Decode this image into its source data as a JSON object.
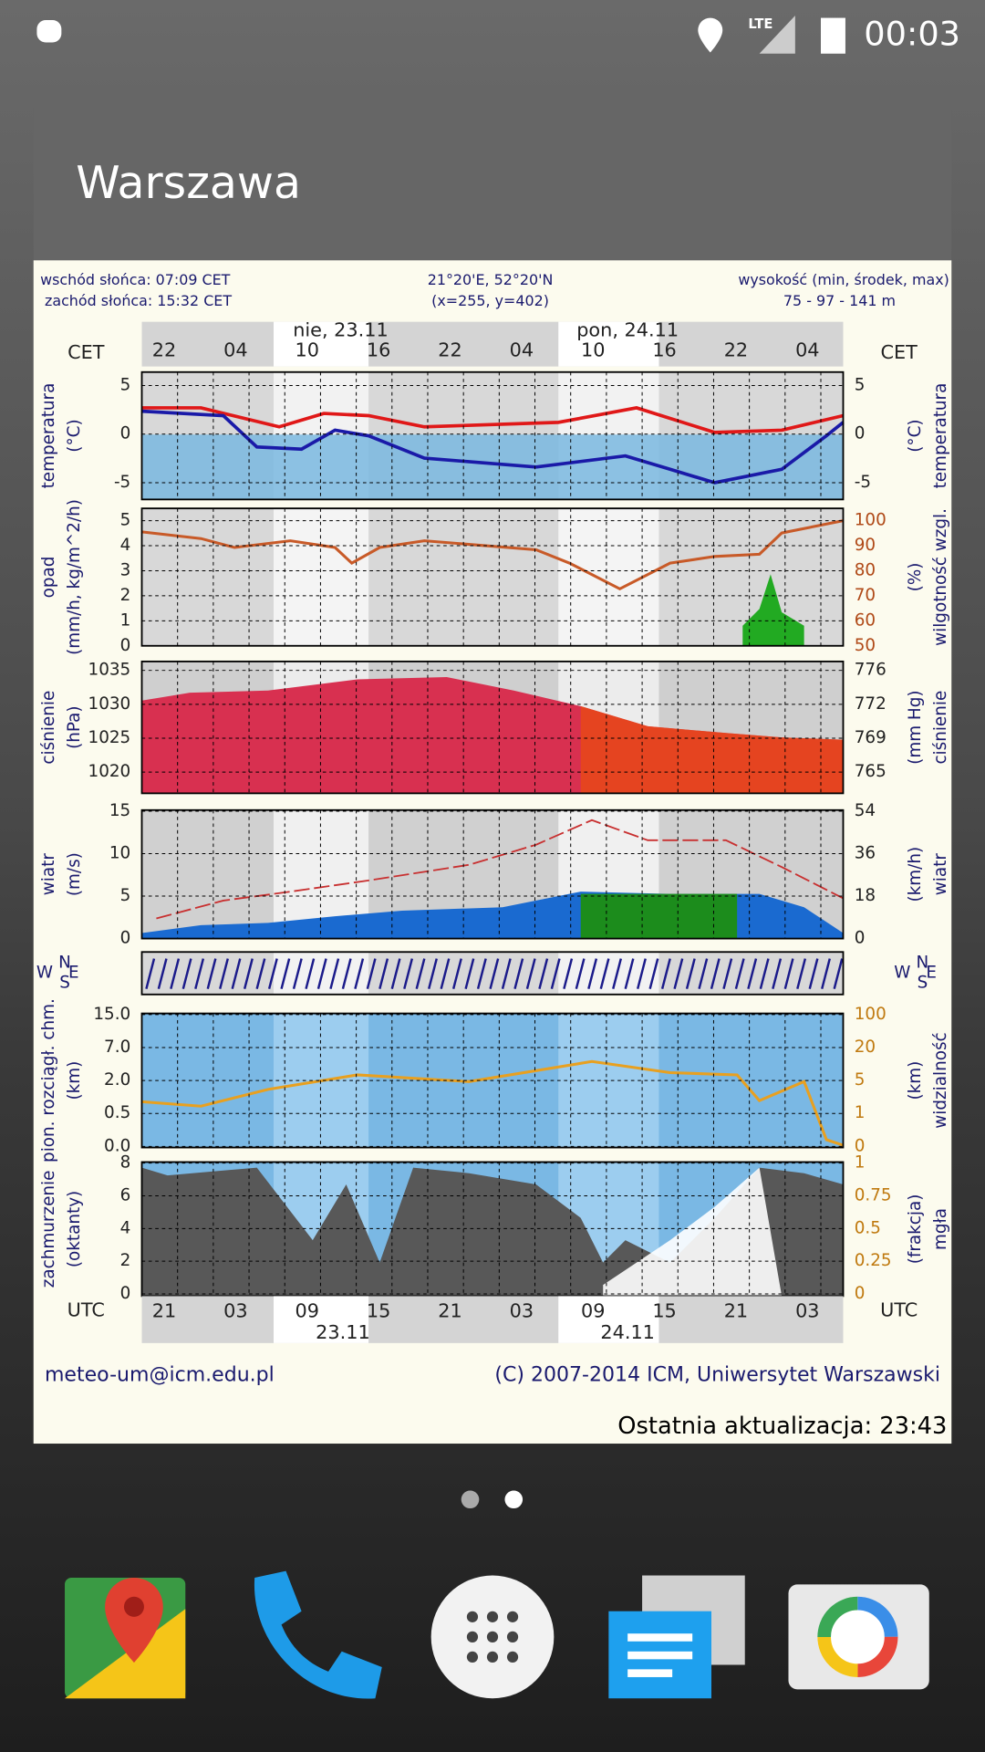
{
  "status_bar": {
    "network": "LTE",
    "time": "00:03"
  },
  "widget": {
    "title": "Warszawa",
    "updated": "Ostatnia aktualizacja: 23:43"
  },
  "meteogram": {
    "header": {
      "left": [
        "wschód słońca: 07:09 CET",
        "zachód słońca: 15:32 CET"
      ],
      "center": [
        "21°20'E, 52°20'N",
        "(x=255, y=402)"
      ],
      "right": [
        "wysokość (min, środek, max)",
        "75 - 97 - 141 m"
      ]
    },
    "top_axis": {
      "zone": "CET",
      "hours": [
        "22",
        "04",
        "10",
        "16",
        "22",
        "04",
        "10",
        "16",
        "22",
        "04"
      ],
      "days": [
        "nie, 23.11",
        "pon, 24.11"
      ]
    },
    "panels": [
      {
        "left_label": [
          "temperatura",
          "(°C)"
        ],
        "right_label": [
          "temperatura",
          "(°C)"
        ],
        "left_ticks": [
          "5",
          "0",
          "-5"
        ],
        "right_ticks": [
          "5",
          "0",
          "-5"
        ]
      },
      {
        "left_label": [
          "opad",
          "(mm/h, kg/m^2/h)"
        ],
        "right_label": [
          "wilgotność wzgl.",
          "(%)"
        ],
        "left_ticks": [
          "5",
          "4",
          "3",
          "2",
          "1",
          "0"
        ],
        "right_ticks": [
          "100",
          "90",
          "80",
          "70",
          "60",
          "50"
        ]
      },
      {
        "left_label": [
          "ciśnienie",
          "(hPa)"
        ],
        "right_label": [
          "ciśnienie",
          "(mm Hg)"
        ],
        "left_ticks": [
          "1035",
          "1030",
          "1025",
          "1020"
        ],
        "right_ticks": [
          "776",
          "772",
          "769",
          "765"
        ]
      },
      {
        "left_label": [
          "wiatr",
          "(m/s)"
        ],
        "right_label": [
          "wiatr",
          "(km/h)"
        ],
        "left_ticks": [
          "15",
          "10",
          "5",
          "0"
        ],
        "right_ticks": [
          "54",
          "36",
          "18",
          "0"
        ]
      },
      {
        "left_label": [
          "pion. rozciągł. chm.",
          "(km)"
        ],
        "right_label": [
          "widzialność",
          "(km)"
        ],
        "left_ticks": [
          "15.0",
          "7.0",
          "2.0",
          "0.5",
          "0.0"
        ],
        "right_ticks": [
          "100",
          "20",
          "5",
          "1",
          "0"
        ]
      },
      {
        "left_label": [
          "zachmurzenie",
          "(oktanty)"
        ],
        "right_label": [
          "mgła",
          "(frakcja)"
        ],
        "left_ticks": [
          "8",
          "6",
          "4",
          "2",
          "0"
        ],
        "right_ticks": [
          "1",
          "0.75",
          "0.5",
          "0.25",
          "0"
        ]
      }
    ],
    "compass": [
      "N",
      "W",
      "S",
      "E"
    ],
    "bottom_axis": {
      "zone": "UTC",
      "hours": [
        "21",
        "03",
        "09",
        "15",
        "21",
        "03",
        "09",
        "15",
        "21",
        "03"
      ],
      "days": [
        "23.11",
        "24.11"
      ]
    },
    "footer": {
      "left": "meteo-um@icm.edu.pl",
      "right": "(C) 2007-2014 ICM, Uniwersytet Warszawski"
    }
  }
}
